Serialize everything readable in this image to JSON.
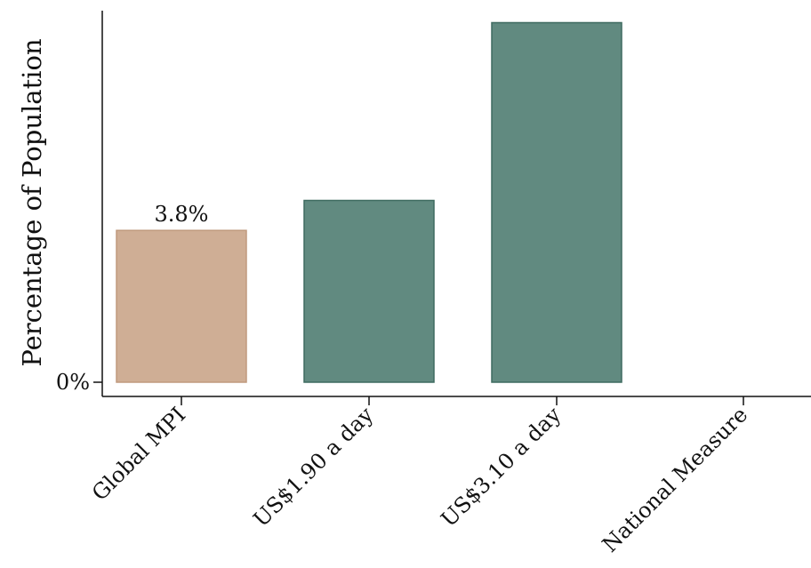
{
  "chart_data": {
    "type": "bar",
    "ylabel": "Percentage of Population",
    "xlabel": "",
    "title": "",
    "categories": [
      "Global MPI",
      "US$1.90 a day",
      "US$3.10 a day",
      "National Measure"
    ],
    "values": [
      3.8,
      4.55,
      9.0,
      null
    ],
    "data_labels": [
      "3.8%",
      "",
      "",
      ""
    ],
    "ylim": [
      0,
      9.3
    ],
    "yticks": [
      {
        "value": 0,
        "label": "0%"
      }
    ],
    "bar_colors": [
      "#cfae95",
      "#618a80",
      "#618a80",
      "#618a80"
    ],
    "bar_edge_colors": [
      "#c09a7e",
      "#3f6b60",
      "#3f6b60",
      "#3f6b60"
    ],
    "grid": false,
    "legend": "none"
  }
}
